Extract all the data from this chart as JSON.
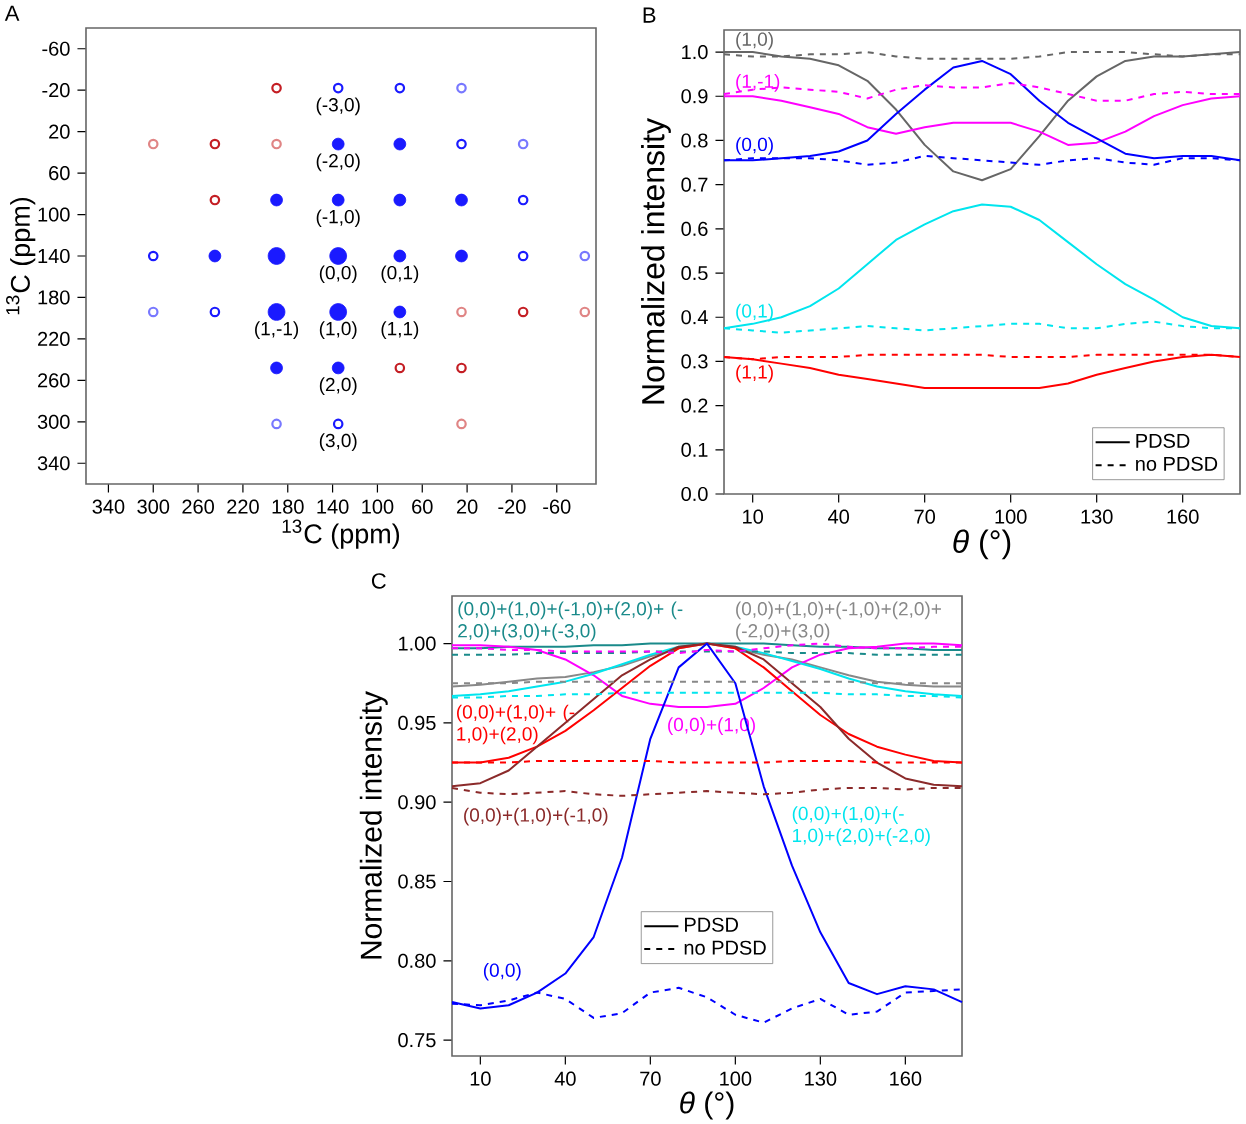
{
  "chart_data": [
    {
      "type": "scatter",
      "title": "A",
      "xlabel": "$^{13}$C (ppm)",
      "ylabel": "$^{13}$C (ppm)",
      "xlim": [
        360,
        -95
      ],
      "ylim": [
        360,
        -80
      ],
      "xticks": [
        340,
        300,
        260,
        220,
        180,
        140,
        100,
        60,
        20,
        -20,
        -60
      ],
      "yticks": [
        -60,
        -20,
        20,
        60,
        100,
        140,
        180,
        220,
        260,
        300,
        340
      ],
      "marker": "circle",
      "series": [
        {
          "type": "bubble",
          "color": "#1a1aff",
          "x": [
            135,
            80,
            190,
            135,
            80,
            25,
            245,
            190,
            135,
            80,
            25,
            190,
            135,
            80,
            190,
            135
          ],
          "values": [
            32,
            32,
            86,
            86,
            86,
            86,
            140,
            140,
            140,
            140,
            140,
            194,
            194,
            194,
            248,
            248
          ],
          "sizes": [
            0.5,
            0.5,
            0.5,
            0.5,
            0.5,
            0.5,
            0.5,
            1,
            1,
            0.5,
            0.5,
            1,
            1,
            0.5,
            0.5,
            0.5
          ]
        },
        {
          "color": "#1a1aff",
          "x": [
            135,
            80,
            25,
            -30,
            300,
            -30,
            245,
            135
          ],
          "values": [
            -22,
            -22,
            32,
            86,
            140,
            140,
            194,
            302
          ]
        },
        {
          "color": "#7878ff",
          "x": [
            25,
            -30,
            -85,
            300,
            190
          ],
          "values": [
            -22,
            32,
            140,
            194,
            302
          ]
        },
        {
          "color": "#c41e24",
          "x": [
            190,
            245,
            245,
            -30,
            80,
            25
          ],
          "values": [
            -22,
            32,
            86,
            194,
            248,
            248
          ]
        },
        {
          "color": "#e08585",
          "x": [
            300,
            190,
            25,
            -85,
            25
          ],
          "values": [
            32,
            32,
            194,
            194,
            302
          ]
        }
      ],
      "annotations": [
        {
          "text": "(-3,0)",
          "x": 135,
          "y": -22
        },
        {
          "text": "(-2,0)",
          "x": 135,
          "y": 32
        },
        {
          "text": "(-1,0)",
          "x": 135,
          "y": 86
        },
        {
          "text": "(0,0)",
          "x": 135,
          "y": 140
        },
        {
          "text": "(0,1)",
          "x": 80,
          "y": 140
        },
        {
          "text": "(1,-1)",
          "x": 190,
          "y": 194
        },
        {
          "text": "(1,0)",
          "x": 135,
          "y": 194
        },
        {
          "text": "(1,1)",
          "x": 80,
          "y": 194
        },
        {
          "text": "(2,0)",
          "x": 135,
          "y": 248
        },
        {
          "text": "(3,0)",
          "x": 135,
          "y": 302
        }
      ]
    },
    {
      "type": "line",
      "title": "B",
      "xlabel": "*θ* (°)",
      "ylabel": "Normalized intensity",
      "xlim": [
        0,
        180
      ],
      "ylim": [
        0,
        1.05
      ],
      "xticks": [
        10,
        40,
        70,
        100,
        130,
        160
      ],
      "yticks": [
        {
          "value": 0,
          "label": "0.0"
        },
        0.1,
        0.2,
        0.3,
        0.4,
        0.5,
        0.6,
        0.7,
        0.8,
        0.9,
        {
          "value": 1,
          "label": "1.0"
        }
      ],
      "legend": "bottom right",
      "x": [
        0,
        10,
        20,
        30,
        40,
        50,
        60,
        70,
        80,
        90,
        100,
        110,
        120,
        130,
        140,
        150,
        160,
        170,
        180
      ],
      "series": [
        {
          "name": "(1,0)",
          "color": "#666666",
          "line_style": "solid",
          "values": [
            1.0,
            1.0,
            0.99,
            0.985,
            0.97,
            0.935,
            0.87,
            0.79,
            0.73,
            0.71,
            0.735,
            0.81,
            0.89,
            0.945,
            0.98,
            0.99,
            0.99,
            0.995,
            1.0
          ]
        },
        {
          "color": "#666666",
          "line_style": "dashed",
          "values": [
            0.995,
            0.99,
            0.99,
            0.995,
            0.995,
            1.0,
            0.99,
            0.985,
            0.985,
            0.985,
            0.985,
            0.99,
            1.0,
            1.0,
            1.0,
            0.995,
            0.99,
            0.995,
            0.995
          ]
        },
        {
          "name": "(1,-1)",
          "color": "#ff00ff",
          "line_style": "solid",
          "values": [
            0.9,
            0.9,
            0.89,
            0.875,
            0.86,
            0.83,
            0.815,
            0.83,
            0.84,
            0.84,
            0.84,
            0.82,
            0.79,
            0.795,
            0.82,
            0.855,
            0.88,
            0.895,
            0.9
          ]
        },
        {
          "color": "#ff00ff",
          "line_style": "dashed",
          "values": [
            0.905,
            0.915,
            0.92,
            0.915,
            0.91,
            0.895,
            0.915,
            0.925,
            0.92,
            0.92,
            0.93,
            0.92,
            0.905,
            0.89,
            0.89,
            0.905,
            0.91,
            0.905,
            0.905
          ]
        },
        {
          "name": "(0,0)",
          "color": "#0000ff",
          "line_style": "solid",
          "values": [
            0.755,
            0.755,
            0.76,
            0.765,
            0.775,
            0.8,
            0.86,
            0.915,
            0.965,
            0.98,
            0.95,
            0.89,
            0.84,
            0.805,
            0.77,
            0.76,
            0.765,
            0.765,
            0.755
          ]
        },
        {
          "color": "#0000ff",
          "line_style": "dashed",
          "values": [
            0.755,
            0.76,
            0.76,
            0.76,
            0.755,
            0.745,
            0.75,
            0.765,
            0.76,
            0.755,
            0.75,
            0.745,
            0.755,
            0.76,
            0.75,
            0.745,
            0.76,
            0.76,
            0.755
          ]
        },
        {
          "name": "(0,1)",
          "color": "#00e5ee",
          "line_style": "solid",
          "values": [
            0.375,
            0.385,
            0.4,
            0.425,
            0.465,
            0.52,
            0.575,
            0.61,
            0.64,
            0.655,
            0.65,
            0.62,
            0.57,
            0.52,
            0.475,
            0.44,
            0.4,
            0.38,
            0.375
          ]
        },
        {
          "color": "#00e5ee",
          "line_style": "dashed",
          "values": [
            0.375,
            0.37,
            0.365,
            0.37,
            0.375,
            0.38,
            0.375,
            0.37,
            0.375,
            0.38,
            0.385,
            0.385,
            0.375,
            0.375,
            0.385,
            0.39,
            0.38,
            0.375,
            0.375
          ]
        },
        {
          "name": "(1,1)",
          "color": "#ff0000",
          "line_style": "solid",
          "values": [
            0.31,
            0.305,
            0.295,
            0.285,
            0.27,
            0.26,
            0.25,
            0.24,
            0.24,
            0.24,
            0.24,
            0.24,
            0.25,
            0.27,
            0.285,
            0.3,
            0.31,
            0.315,
            0.31
          ]
        },
        {
          "color": "#ff0000",
          "line_style": "dashed",
          "values": [
            0.31,
            0.305,
            0.31,
            0.31,
            0.31,
            0.315,
            0.315,
            0.315,
            0.315,
            0.315,
            0.31,
            0.31,
            0.31,
            0.315,
            0.315,
            0.315,
            0.315,
            0.315,
            0.31
          ]
        },
        {
          "name": "PDSD",
          "color": "#000000",
          "line_style": "solid",
          "values": [
            null,
            null,
            null,
            null,
            null,
            null,
            null,
            null,
            null,
            null,
            null,
            null,
            null,
            null,
            null,
            null,
            null,
            null,
            null
          ]
        },
        {
          "name": "no PDSD",
          "color": "#000000",
          "line_style": "dashed",
          "values": [
            null,
            null,
            null,
            null,
            null,
            null,
            null,
            null,
            null,
            null,
            null,
            null,
            null,
            null,
            null,
            null,
            null,
            null,
            null
          ]
        }
      ]
    },
    {
      "type": "line",
      "title": "C",
      "xlabel": "*θ* (°)",
      "ylabel": "Normalized intensity",
      "xlim": [
        0,
        180
      ],
      "ylim": [
        0.74,
        1.03
      ],
      "xticks": [
        10,
        40,
        70,
        100,
        130,
        160
      ],
      "yticks": [
        0.75,
        {
          "value": 0.8,
          "label": "0.80"
        },
        0.85,
        {
          "value": 0.9,
          "label": "0.90"
        },
        0.95,
        {
          "value": 1,
          "label": "1.00"
        }
      ],
      "legend": "bottom",
      "x": [
        0,
        10,
        20,
        30,
        40,
        50,
        60,
        70,
        80,
        90,
        100,
        110,
        120,
        130,
        140,
        150,
        160,
        170,
        180
      ],
      "series": [
        {
          "name": "(0,0)+(1,0)+(-1,0)+(2,0)+ (-2,0)+(3,0)+(-3,0)",
          "color": "#1a8a8a",
          "line_style": "solid",
          "values": [
            0.997,
            0.997,
            0.998,
            0.998,
            0.998,
            0.999,
            0.999,
            1.0,
            1.0,
            1.0,
            1.0,
            1.0,
            0.999,
            0.998,
            0.998,
            0.997,
            0.997,
            0.996,
            0.996
          ]
        },
        {
          "color": "#1a8a8a",
          "line_style": "dashed",
          "values": [
            0.993,
            0.993,
            0.993,
            0.994,
            0.994,
            0.994,
            0.994,
            0.995,
            0.995,
            0.995,
            0.995,
            0.995,
            0.994,
            0.994,
            0.994,
            0.993,
            0.993,
            0.993,
            0.993
          ]
        },
        {
          "name": "(0,0)+(1,0)+(-1,0)+(2,0)+ (-2,0)+(3,0)",
          "color": "#888888",
          "line_style": "solid",
          "values": [
            0.973,
            0.974,
            0.976,
            0.978,
            0.979,
            0.982,
            0.986,
            0.992,
            0.997,
            1.0,
            0.997,
            0.993,
            0.99,
            0.985,
            0.98,
            0.976,
            0.974,
            0.973,
            0.973
          ]
        },
        {
          "color": "#888888",
          "line_style": "dashed",
          "values": [
            0.975,
            0.975,
            0.975,
            0.976,
            0.976,
            0.976,
            0.976,
            0.976,
            0.976,
            0.976,
            0.976,
            0.976,
            0.976,
            0.976,
            0.976,
            0.975,
            0.975,
            0.975,
            0.975
          ]
        },
        {
          "name": "(0,0)+(1,0)",
          "color": "#ff00ff",
          "line_style": "solid",
          "values": [
            0.999,
            0.999,
            0.998,
            0.996,
            0.99,
            0.98,
            0.967,
            0.962,
            0.96,
            0.96,
            0.962,
            0.972,
            0.985,
            0.993,
            0.997,
            0.998,
            1.0,
            1.0,
            0.999
          ]
        },
        {
          "color": "#ff00ff",
          "line_style": "dashed",
          "values": [
            0.997,
            0.997,
            0.996,
            0.996,
            0.995,
            0.995,
            0.995,
            0.995,
            0.994,
            0.996,
            0.995,
            0.997,
            0.999,
            1.0,
            0.998,
            0.997,
            0.997,
            0.998,
            0.998
          ]
        },
        {
          "name": "(0,0)+(1,0)+(- 1,0)+(2,0)+(-2,0)",
          "color": "#00e5ee",
          "line_style": "solid",
          "values": [
            0.967,
            0.968,
            0.97,
            0.973,
            0.976,
            0.981,
            0.987,
            0.993,
            0.998,
            1.0,
            0.998,
            0.994,
            0.989,
            0.984,
            0.978,
            0.973,
            0.97,
            0.968,
            0.967
          ]
        },
        {
          "color": "#00e5ee",
          "line_style": "dashed",
          "values": [
            0.966,
            0.966,
            0.967,
            0.967,
            0.968,
            0.968,
            0.969,
            0.969,
            0.969,
            0.969,
            0.969,
            0.969,
            0.969,
            0.969,
            0.968,
            0.968,
            0.967,
            0.967,
            0.966
          ]
        },
        {
          "name": "(0,0)+(1,0)+ (-1,0)+(2,0)",
          "color": "#ff0000",
          "line_style": "solid",
          "values": [
            0.925,
            0.925,
            0.928,
            0.935,
            0.945,
            0.958,
            0.972,
            0.986,
            0.997,
            1.0,
            0.997,
            0.985,
            0.97,
            0.955,
            0.943,
            0.935,
            0.93,
            0.926,
            0.925
          ]
        },
        {
          "color": "#ff0000",
          "line_style": "dashed",
          "values": [
            0.925,
            0.925,
            0.925,
            0.926,
            0.926,
            0.926,
            0.926,
            0.926,
            0.925,
            0.925,
            0.925,
            0.925,
            0.926,
            0.926,
            0.926,
            0.925,
            0.925,
            0.925,
            0.925
          ]
        },
        {
          "name": "(0,0)+(1,0)+(-1,0)",
          "color": "#8b2a2a",
          "line_style": "solid",
          "values": [
            0.91,
            0.912,
            0.92,
            0.935,
            0.95,
            0.965,
            0.98,
            0.99,
            0.998,
            1.0,
            0.998,
            0.99,
            0.975,
            0.96,
            0.94,
            0.925,
            0.915,
            0.911,
            0.91
          ]
        },
        {
          "color": "#8b2a2a",
          "line_style": "dashed",
          "values": [
            0.909,
            0.906,
            0.905,
            0.906,
            0.907,
            0.905,
            0.904,
            0.905,
            0.906,
            0.907,
            0.906,
            0.905,
            0.906,
            0.908,
            0.909,
            0.909,
            0.908,
            0.909,
            0.909
          ]
        },
        {
          "name": "(0,0)",
          "color": "#0000ff",
          "line_style": "solid",
          "values": [
            0.774,
            0.77,
            0.772,
            0.78,
            0.792,
            0.815,
            0.865,
            0.94,
            0.985,
            1.0,
            0.975,
            0.91,
            0.86,
            0.818,
            0.786,
            0.779,
            0.784,
            0.782,
            0.774
          ]
        },
        {
          "color": "#0000ff",
          "line_style": "dashed",
          "values": [
            0.773,
            0.772,
            0.775,
            0.78,
            0.776,
            0.764,
            0.767,
            0.78,
            0.783,
            0.777,
            0.766,
            0.761,
            0.77,
            0.776,
            0.766,
            0.768,
            0.78,
            0.781,
            0.782
          ]
        },
        {
          "name": "PDSD",
          "color": "#000000",
          "line_style": "solid",
          "values": [
            null,
            null,
            null,
            null,
            null,
            null,
            null,
            null,
            null,
            null,
            null,
            null,
            null,
            null,
            null,
            null,
            null,
            null,
            null
          ]
        },
        {
          "name": "no PDSD",
          "color": "#000000",
          "line_style": "dashed",
          "values": [
            null,
            null,
            null,
            null,
            null,
            null,
            null,
            null,
            null,
            null,
            null,
            null,
            null,
            null,
            null,
            null,
            null,
            null,
            null
          ]
        }
      ]
    }
  ]
}
